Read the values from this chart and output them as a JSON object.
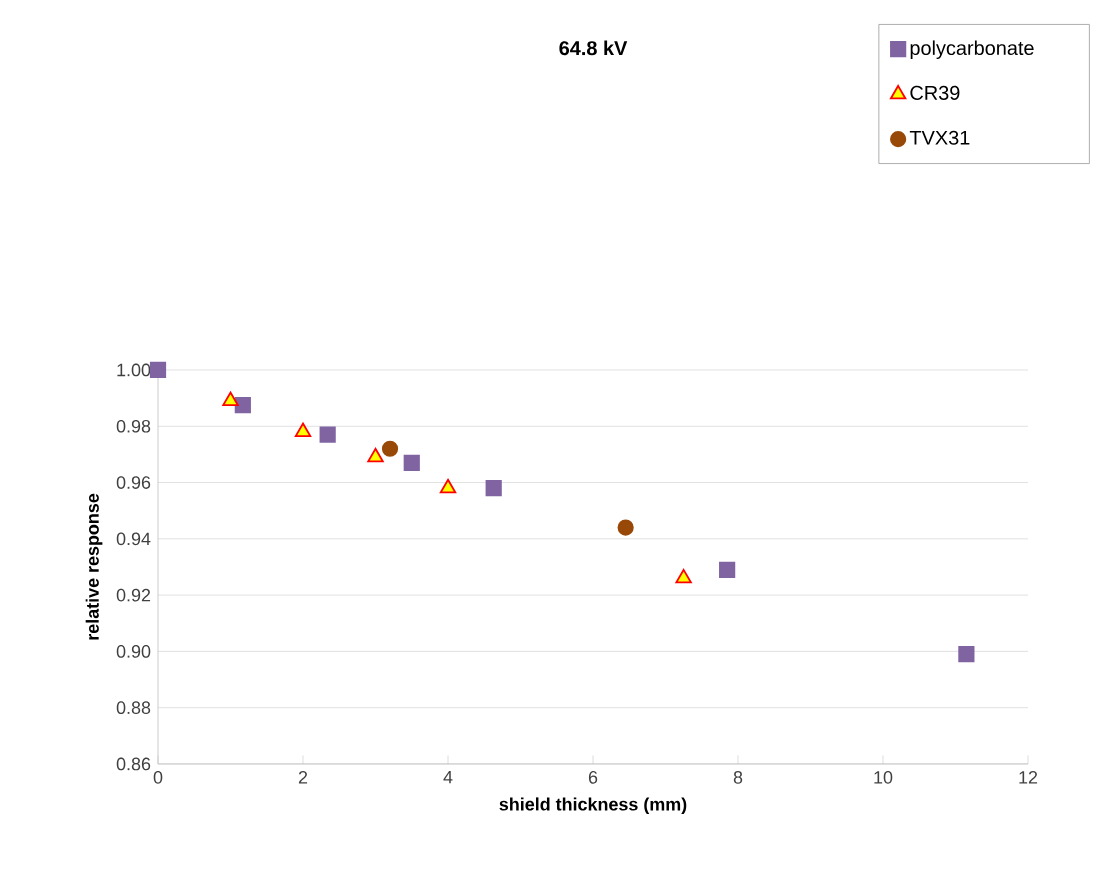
{
  "chart_data": {
    "type": "scatter",
    "title": "**64.8 kV**",
    "xlabel": "shield thickness (mm)",
    "ylabel": "relative response",
    "xlim": [
      0,
      12
    ],
    "xticks": [
      0,
      2,
      4,
      6,
      8,
      10,
      12
    ],
    "ylim": [
      0.86,
      1.0
    ],
    "yticks": [
      {
        "value": 0.86,
        "label": "0.86"
      },
      {
        "value": 0.88,
        "label": "0.88"
      },
      {
        "value": 0.9,
        "label": "0.90"
      },
      {
        "value": 0.92,
        "label": "0.92"
      },
      {
        "value": 0.94,
        "label": "0.94"
      },
      {
        "value": 0.96,
        "label": "0.96"
      },
      {
        "value": 0.98,
        "label": "0.98"
      },
      {
        "value": 1.0,
        "label": "1.00"
      }
    ],
    "grid": "y",
    "legend": "top right",
    "series": [
      {
        "name": "polycarbonate",
        "color": "#8064a2",
        "marker": "square",
        "x": [
          0,
          1.17,
          2.34,
          3.5,
          4.63,
          7.85,
          11.15
        ],
        "values": [
          1.0,
          0.9875,
          0.977,
          0.967,
          0.958,
          0.929,
          0.899
        ]
      },
      {
        "name": "CR39",
        "color": "#ffff00",
        "marker": "triangle",
        "x": [
          1.0,
          2.0,
          3.0,
          4.0,
          7.25
        ],
        "values": [
          0.989,
          0.978,
          0.969,
          0.958,
          0.926
        ]
      },
      {
        "name": "TVX31",
        "color": "#984807",
        "marker": "circle",
        "x": [
          3.2,
          6.45
        ],
        "values": [
          0.972,
          0.944
        ]
      }
    ]
  }
}
